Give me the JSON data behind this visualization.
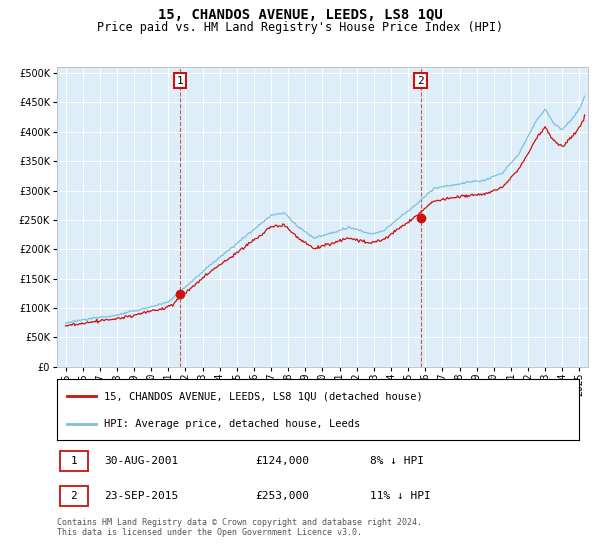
{
  "title": "15, CHANDOS AVENUE, LEEDS, LS8 1QU",
  "subtitle": "Price paid vs. HM Land Registry's House Price Index (HPI)",
  "hpi_color": "#7fbfdf",
  "price_color": "#cc1111",
  "background_color": "#ddeef8",
  "grid_color": "#ffffff",
  "purchase1": {
    "date_num": 2001.67,
    "price": 124000,
    "label": "1"
  },
  "purchase2": {
    "date_num": 2015.73,
    "price": 253000,
    "label": "2"
  },
  "legend_entry1": "15, CHANDOS AVENUE, LEEDS, LS8 1QU (detached house)",
  "legend_entry2": "HPI: Average price, detached house, Leeds",
  "ann1_date": "30-AUG-2001",
  "ann1_price": "£124,000",
  "ann1_hpi": "8% ↓ HPI",
  "ann2_date": "23-SEP-2015",
  "ann2_price": "£253,000",
  "ann2_hpi": "11% ↓ HPI",
  "footnote": "Contains HM Land Registry data © Crown copyright and database right 2024.\nThis data is licensed under the Open Government Licence v3.0.",
  "title_fontsize": 10,
  "subtitle_fontsize": 8.5,
  "tick_fontsize": 7,
  "label_fontsize": 7.5,
  "legend_fontsize": 7.5,
  "ann_fontsize": 8,
  "footnote_fontsize": 6,
  "xmin": 1994.5,
  "xmax": 2025.5,
  "ymin": 0,
  "ymax": 510000
}
